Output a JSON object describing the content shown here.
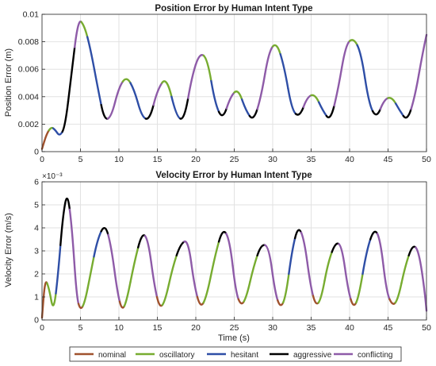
{
  "legend": {
    "placement": "bottom",
    "entries": [
      {
        "label": "nominal",
        "color": "#A0522D"
      },
      {
        "label": "oscillatory",
        "color": "#77AC30"
      },
      {
        "label": "hesitant",
        "color": "#2E4EA6"
      },
      {
        "label": "aggressive",
        "color": "#000000"
      },
      {
        "label": "conflicting",
        "color": "#8E5BA8"
      }
    ]
  },
  "chart_data": [
    {
      "type": "line",
      "title": "Position Error by Human Intent Type",
      "xlabel": "",
      "ylabel": "Position Error (m)",
      "xlim": [
        0,
        50
      ],
      "ylim": [
        0,
        0.01
      ],
      "grid": true,
      "x_ticks": [
        0,
        5,
        10,
        15,
        20,
        25,
        30,
        35,
        40,
        45,
        50
      ],
      "x_tick_labels": [
        "0",
        "5",
        "10",
        "15",
        "20",
        "25",
        "30",
        "35",
        "40",
        "45",
        "50"
      ],
      "y_ticks": [
        0,
        0.002,
        0.004,
        0.006,
        0.008,
        0.01
      ],
      "y_tick_labels": [
        "0",
        "0.002",
        "0.004",
        "0.006",
        "0.008",
        "0.01"
      ],
      "exponent_label": "",
      "series": [
        {
          "x": [
            0,
            0.6,
            1.2,
            1.7,
            2.3,
            3.0,
            3.8,
            4.7,
            5.5,
            6.3,
            7.3,
            8.1,
            9.0,
            10.0,
            11.0,
            12.0,
            13.0,
            14.0,
            15.0,
            16.2,
            17.5,
            18.5,
            19.5,
            20.5,
            21.5,
            22.5,
            23.5,
            24.5,
            25.5,
            26.5,
            27.5,
            28.5,
            29.5,
            30.5,
            31.5,
            32.5,
            33.5,
            34.5,
            35.5,
            36.5,
            37.5,
            38.5,
            39.5,
            40.5,
            41.5,
            42.5,
            43.5,
            44.5,
            45.5,
            46.5,
            47.5,
            48.5,
            49.5,
            50
          ],
          "y": [
            0.0002,
            0.0013,
            0.0018,
            0.0016,
            0.0011,
            0.0018,
            0.0055,
            0.0097,
            0.0092,
            0.0075,
            0.0045,
            0.0023,
            0.0025,
            0.0047,
            0.0055,
            0.0045,
            0.0025,
            0.0023,
            0.0045,
            0.0055,
            0.0025,
            0.0023,
            0.0055,
            0.0072,
            0.0068,
            0.0035,
            0.0023,
            0.004,
            0.0046,
            0.003,
            0.0022,
            0.004,
            0.0073,
            0.008,
            0.0062,
            0.003,
            0.0025,
            0.004,
            0.0042,
            0.003,
            0.0022,
            0.0045,
            0.0078,
            0.0083,
            0.0072,
            0.0035,
            0.0024,
            0.0038,
            0.004,
            0.003,
            0.0022,
            0.004,
            0.0072,
            0.0085
          ],
          "colors": [
            "#A0522D",
            "#A0522D",
            "#77AC30",
            "#2E4EA6",
            "#2E4EA6",
            "#000000",
            "#000000",
            "#8E5BA8",
            "#77AC30",
            "#2E4EA6",
            "#2E4EA6",
            "#000000",
            "#8E5BA8",
            "#8E5BA8",
            "#77AC30",
            "#2E4EA6",
            "#2E4EA6",
            "#000000",
            "#8E5BA8",
            "#77AC30",
            "#2E4EA6",
            "#000000",
            "#8E5BA8",
            "#8E5BA8",
            "#77AC30",
            "#2E4EA6",
            "#000000",
            "#8E5BA8",
            "#77AC30",
            "#2E4EA6",
            "#000000",
            "#8E5BA8",
            "#8E5BA8",
            "#77AC30",
            "#2E4EA6",
            "#2E4EA6",
            "#000000",
            "#8E5BA8",
            "#77AC30",
            "#2E4EA6",
            "#000000",
            "#8E5BA8",
            "#8E5BA8",
            "#77AC30",
            "#2E4EA6",
            "#2E4EA6",
            "#000000",
            "#8E5BA8",
            "#77AC30",
            "#2E4EA6",
            "#000000",
            "#8E5BA8",
            "#8E5BA8"
          ]
        }
      ]
    },
    {
      "type": "line",
      "title": "Velocity Error by Human Intent Type",
      "xlabel": "Time (s)",
      "ylabel": "Velocity Error (m/s)",
      "xlim": [
        0,
        50
      ],
      "ylim": [
        0,
        6
      ],
      "grid": true,
      "x_ticks": [
        0,
        5,
        10,
        15,
        20,
        25,
        30,
        35,
        40,
        45,
        50
      ],
      "x_tick_labels": [
        "0",
        "5",
        "10",
        "15",
        "20",
        "25",
        "30",
        "35",
        "40",
        "45",
        "50"
      ],
      "y_ticks": [
        0,
        1,
        2,
        3,
        4,
        5,
        6
      ],
      "y_tick_labels": [
        "0",
        "1",
        "2",
        "3",
        "4",
        "5",
        "6"
      ],
      "exponent_label": "×10⁻³",
      "series": [
        {
          "x": [
            0,
            0.4,
            0.9,
            1.5,
            2.1,
            2.7,
            3.3,
            3.9,
            4.5,
            5.0,
            5.6,
            6.3,
            7.2,
            8.2,
            9.0,
            9.8,
            10.4,
            11.0,
            12.0,
            13.0,
            13.8,
            14.6,
            15.3,
            16.0,
            17.0,
            18.0,
            19.0,
            19.8,
            20.6,
            21.4,
            22.5,
            23.5,
            24.4,
            25.2,
            25.9,
            26.6,
            27.5,
            28.5,
            29.5,
            30.3,
            31.0,
            31.7,
            32.5,
            33.3,
            34.1,
            34.9,
            35.6,
            36.3,
            37.2,
            38.2,
            39.0,
            39.8,
            40.5,
            41.2,
            42.2,
            43.2,
            44.0,
            44.8,
            45.6,
            46.3,
            47.2,
            48.2,
            49.0,
            49.8,
            50
          ],
          "y": [
            0.1,
            1.8,
            1.4,
            0.3,
            2.0,
            4.5,
            5.6,
            4.0,
            1.0,
            0.4,
            0.8,
            2.0,
            3.5,
            4.2,
            3.2,
            1.2,
            0.4,
            0.8,
            2.5,
            3.8,
            3.5,
            1.5,
            0.5,
            0.8,
            2.3,
            3.3,
            3.5,
            1.5,
            0.5,
            1.0,
            2.8,
            4.0,
            3.5,
            1.2,
            0.6,
            1.0,
            2.3,
            3.3,
            3.2,
            1.2,
            0.5,
            1.0,
            3.0,
            4.1,
            3.5,
            1.5,
            0.6,
            0.9,
            2.5,
            3.4,
            3.2,
            1.3,
            0.5,
            1.0,
            3.0,
            4.0,
            3.5,
            1.2,
            0.6,
            0.9,
            2.3,
            3.3,
            3.0,
            1.2,
            0.4
          ],
          "colors": [
            "#A0522D",
            "#A0522D",
            "#77AC30",
            "#77AC30",
            "#2E4EA6",
            "#000000",
            "#000000",
            "#8E5BA8",
            "#8E5BA8",
            "#A0522D",
            "#77AC30",
            "#77AC30",
            "#2E4EA6",
            "#000000",
            "#8E5BA8",
            "#8E5BA8",
            "#A0522D",
            "#77AC30",
            "#77AC30",
            "#000000",
            "#8E5BA8",
            "#8E5BA8",
            "#A0522D",
            "#77AC30",
            "#77AC30",
            "#000000",
            "#8E5BA8",
            "#8E5BA8",
            "#A0522D",
            "#77AC30",
            "#77AC30",
            "#000000",
            "#8E5BA8",
            "#8E5BA8",
            "#A0522D",
            "#77AC30",
            "#77AC30",
            "#000000",
            "#8E5BA8",
            "#8E5BA8",
            "#A0522D",
            "#77AC30",
            "#2E4EA6",
            "#000000",
            "#8E5BA8",
            "#8E5BA8",
            "#A0522D",
            "#77AC30",
            "#77AC30",
            "#000000",
            "#8E5BA8",
            "#8E5BA8",
            "#A0522D",
            "#77AC30",
            "#2E4EA6",
            "#000000",
            "#8E5BA8",
            "#8E5BA8",
            "#A0522D",
            "#77AC30",
            "#77AC30",
            "#000000",
            "#8E5BA8",
            "#8E5BA8"
          ]
        }
      ]
    }
  ]
}
